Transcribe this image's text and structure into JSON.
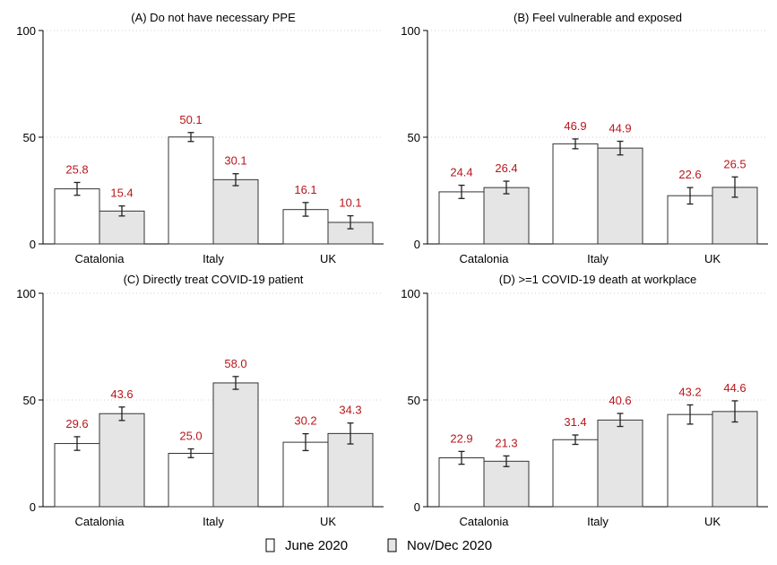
{
  "chart_data": {
    "type": "bar",
    "ylim": [
      0,
      100
    ],
    "yticks": [
      0,
      50,
      100
    ],
    "grid": true,
    "legend": {
      "position": "bottom",
      "items": [
        {
          "label": "June 2020",
          "color": "#ffffff"
        },
        {
          "label": "Nov/Dec 2020",
          "color": "#e5e5e5"
        }
      ]
    },
    "colors": {
      "value_label": "#b8161b",
      "bar_stroke": "#333333",
      "grid": "#cfcfcf"
    },
    "panels": [
      {
        "title": "(A) Do not have necessary PPE",
        "categories": [
          "Catalonia",
          "Italy",
          "UK"
        ],
        "series": [
          {
            "values": [
              25.8,
              50.1,
              16.1
            ],
            "ci_low": [
              22.8,
              48.0,
              13.0
            ],
            "ci_high": [
              28.8,
              52.2,
              19.4
            ]
          },
          {
            "values": [
              15.4,
              30.1,
              10.1
            ],
            "ci_low": [
              13.1,
              27.3,
              7.1
            ],
            "ci_high": [
              17.8,
              32.9,
              13.2
            ]
          }
        ],
        "labels": [
          [
            "25.8",
            "50.1",
            "16.1"
          ],
          [
            "15.4",
            "30.1",
            "10.1"
          ]
        ]
      },
      {
        "title": "(B) Feel vulnerable and exposed",
        "categories": [
          "Catalonia",
          "Italy",
          "UK"
        ],
        "series": [
          {
            "values": [
              24.4,
              46.9,
              22.6
            ],
            "ci_low": [
              21.3,
              44.6,
              18.7
            ],
            "ci_high": [
              27.5,
              49.2,
              26.4
            ]
          },
          {
            "values": [
              26.4,
              44.9,
              26.5
            ],
            "ci_low": [
              23.5,
              41.7,
              21.9
            ],
            "ci_high": [
              29.4,
              48.1,
              31.4
            ]
          }
        ],
        "labels": [
          [
            "24.4",
            "46.9",
            "22.6"
          ],
          [
            "26.4",
            "44.9",
            "26.5"
          ]
        ]
      },
      {
        "title": "(C) Directly treat COVID-19 patient",
        "categories": [
          "Catalonia",
          "Italy",
          "UK"
        ],
        "series": [
          {
            "values": [
              29.6,
              25.0,
              30.2
            ],
            "ci_low": [
              26.4,
              23.0,
              26.3
            ],
            "ci_high": [
              32.8,
              27.1,
              34.2
            ]
          },
          {
            "values": [
              43.6,
              58.0,
              34.3
            ],
            "ci_low": [
              40.4,
              55.0,
              29.4
            ],
            "ci_high": [
              46.7,
              61.0,
              39.2
            ]
          }
        ],
        "labels": [
          [
            "29.6",
            "25.0",
            "30.2"
          ],
          [
            "43.6",
            "58.0",
            "34.3"
          ]
        ]
      },
      {
        "title": "(D) >=1 COVID-19 death at workplace",
        "categories": [
          "Catalonia",
          "Italy",
          "UK"
        ],
        "series": [
          {
            "values": [
              22.9,
              31.4,
              43.2
            ],
            "ci_low": [
              19.9,
              29.2,
              38.7
            ],
            "ci_high": [
              25.9,
              33.6,
              47.7
            ]
          },
          {
            "values": [
              21.3,
              40.6,
              44.6
            ],
            "ci_low": [
              18.8,
              37.6,
              39.7
            ],
            "ci_high": [
              23.8,
              43.7,
              49.6
            ]
          }
        ],
        "labels": [
          [
            "22.9",
            "31.4",
            "43.2"
          ],
          [
            "21.3",
            "40.6",
            "44.6"
          ]
        ]
      }
    ]
  }
}
